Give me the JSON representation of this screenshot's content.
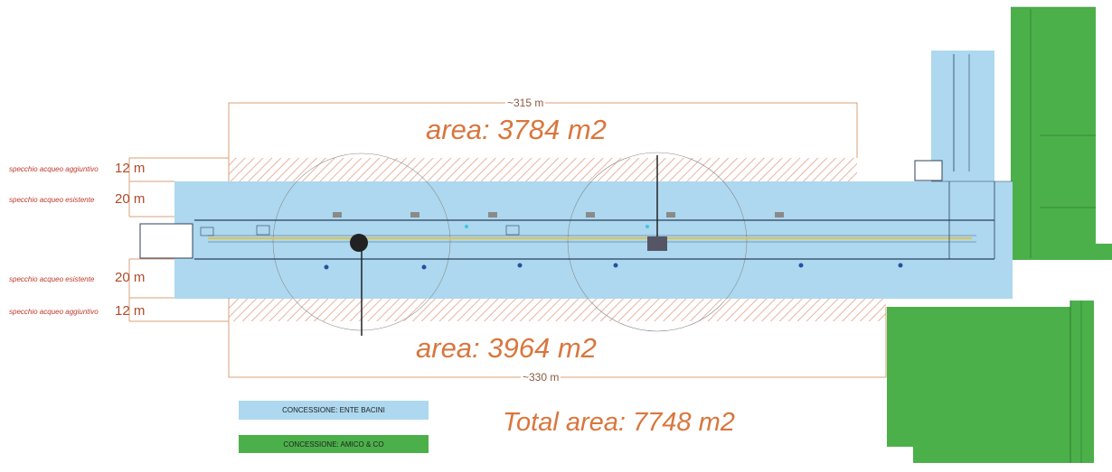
{
  "labels": {
    "additional_water": "specchio acqueo aggiuntivo",
    "existing_water": "specchio acqueo esistente",
    "width_12": "12 m",
    "width_20": "20 m"
  },
  "dimensions": {
    "top_length": "~315 m",
    "bottom_length": "~330 m"
  },
  "areas": {
    "top": "area: 3784 m2",
    "bottom": "area: 3964 m2",
    "total": "Total area: 7748 m2"
  },
  "legend": {
    "ente_bacini": "CONCESSIONE: ENTE BACINI",
    "amico": "CONCESSIONE: AMICO & CO"
  },
  "colors": {
    "ente_bacini": "#add8ef",
    "amico": "#4cb04a",
    "hatch": "#e8b9a8",
    "dimension_line": "#d9a07a",
    "area_text": "#d9763d"
  }
}
